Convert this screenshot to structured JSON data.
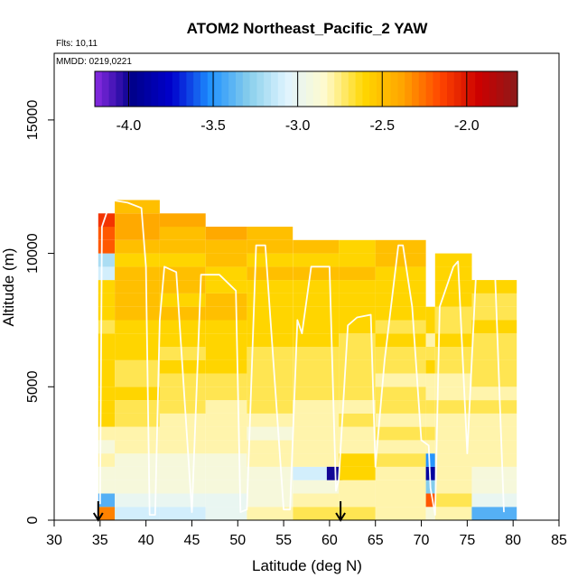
{
  "chart_data": {
    "type": "heatmap",
    "title": "ATOM2 Northeast_Pacific_2 YAW",
    "flights_label": "Flts: 10,11",
    "dates_label": "MMDD: 0219,0221",
    "xlabel": "Latitude (deg N)",
    "ylabel": "Altitude (m)",
    "xlim": [
      30,
      85
    ],
    "ylim": [
      0,
      17500
    ],
    "x_ticks": [
      30,
      35,
      40,
      45,
      50,
      55,
      60,
      65,
      70,
      75,
      80,
      85
    ],
    "y_ticks": [
      0,
      5000,
      10000,
      15000
    ],
    "colorbar": {
      "range": [
        -4.2,
        -1.7
      ],
      "ticks": [
        -4.0,
        -3.5,
        -3.0,
        -2.5,
        -2.0
      ],
      "tick_labels": [
        "-4.0",
        "-3.5",
        "-3.0",
        "-2.5",
        "-2.0"
      ],
      "colors": [
        "#8a2be2",
        "#00008b",
        "#0000cd",
        "#1e90ff",
        "#87ceeb",
        "#e0f4ff",
        "#fffacd",
        "#ffd700",
        "#ffa500",
        "#ff4500",
        "#cc0000",
        "#8b1a1a"
      ]
    },
    "altitude_bin_m": 500,
    "profiles": [
      {
        "lat_start": 34.8,
        "lat_end": 36.6,
        "alt_max": 11500,
        "values": [
          -2.3,
          -3.4,
          -2.9,
          -2.9,
          -2.8,
          -2.9,
          -2.8,
          -2.6,
          -2.6,
          -2.6,
          -2.6,
          -2.6,
          -2.6,
          -2.6,
          -2.7,
          -2.6,
          -2.6,
          -2.6,
          -3.1,
          -3.2,
          -2.2,
          -2.2,
          -2.1
        ]
      },
      {
        "lat_start": 36.6,
        "lat_end": 41.5,
        "alt_max": 12000,
        "values": [
          -3.1,
          -3.0,
          -2.9,
          -2.9,
          -2.9,
          -2.8,
          -2.8,
          -2.7,
          -2.7,
          -2.6,
          -2.7,
          -2.7,
          -2.6,
          -2.6,
          -2.6,
          -2.5,
          -2.5,
          -2.5,
          -2.5,
          -2.6,
          -2.5,
          -2.4,
          -2.4,
          -2.5
        ]
      },
      {
        "lat_start": 41.5,
        "lat_end": 46.5,
        "alt_max": 11500,
        "values": [
          -3.1,
          -3.0,
          -2.9,
          -2.9,
          -2.9,
          -2.8,
          -2.8,
          -2.8,
          -2.7,
          -2.7,
          -2.7,
          -2.6,
          -2.7,
          -2.6,
          -2.6,
          -2.5,
          -2.6,
          -2.5,
          -2.5,
          -2.6,
          -2.5,
          -2.5,
          -2.4
        ]
      },
      {
        "lat_start": 46.5,
        "lat_end": 51.0,
        "alt_max": 11000,
        "values": [
          -3.0,
          -3.0,
          -2.9,
          -2.9,
          -2.9,
          -2.8,
          -2.8,
          -2.8,
          -2.8,
          -2.7,
          -2.7,
          -2.6,
          -2.6,
          -2.6,
          -2.6,
          -2.5,
          -2.5,
          -2.6,
          -2.6,
          -2.5,
          -2.5,
          -2.4
        ]
      },
      {
        "lat_start": 51.0,
        "lat_end": 56.0,
        "alt_max": 11000,
        "values": [
          -2.8,
          -2.9,
          -2.9,
          -2.9,
          -2.8,
          -2.8,
          -2.9,
          -2.8,
          -2.7,
          -2.7,
          -2.7,
          -2.7,
          -2.7,
          -2.6,
          -2.6,
          -2.6,
          -2.6,
          -2.6,
          -2.5,
          -2.6,
          -2.5,
          -2.5
        ]
      },
      {
        "lat_start": 56.0,
        "lat_end": 61.0,
        "alt_max": 10500,
        "values": [
          -2.7,
          -2.8,
          -2.9,
          -3.1,
          -2.8,
          -2.8,
          -2.8,
          -2.8,
          -2.8,
          -2.7,
          -2.7,
          -2.7,
          -2.7,
          -2.6,
          -2.6,
          -2.6,
          -2.6,
          -2.6,
          -2.5,
          -2.6,
          -2.5
        ]
      },
      {
        "lat_start": 59.7,
        "lat_end": 61.4,
        "alt_min": 1500,
        "alt_max": 2000,
        "values": [
          -4.0
        ]
      },
      {
        "lat_start": 61.0,
        "lat_end": 65.0,
        "alt_max": 10500,
        "values": [
          -2.7,
          -2.8,
          -2.8,
          -2.6,
          -2.6,
          -2.8,
          -2.8,
          -2.7,
          -2.8,
          -2.7,
          -2.7,
          -2.7,
          -2.7,
          -2.7,
          -2.6,
          -2.6,
          -2.6,
          -2.6,
          -2.5,
          -2.6,
          -2.6
        ]
      },
      {
        "lat_start": 65.0,
        "lat_end": 70.5,
        "alt_max": 10500,
        "values": [
          -2.8,
          -2.8,
          -2.8,
          -2.8,
          -2.7,
          -2.8,
          -2.7,
          -2.8,
          -2.7,
          -2.7,
          -2.8,
          -2.7,
          -2.7,
          -2.6,
          -2.7,
          -2.6,
          -2.6,
          -2.6,
          -2.6,
          -2.5,
          -2.5
        ]
      },
      {
        "lat_start": 70.5,
        "lat_end": 71.5,
        "alt_max": 8000,
        "values": [
          -2.9,
          -2.2,
          -3.3,
          -3.9,
          -3.5,
          -2.8,
          -2.7,
          -2.8,
          -2.7,
          -2.8,
          -2.8,
          -2.6,
          -2.7,
          -2.8,
          -2.6,
          -2.6
        ]
      },
      {
        "lat_start": 71.5,
        "lat_end": 75.5,
        "alt_max": 10000,
        "values": [
          -2.8,
          -2.7,
          -2.8,
          -2.8,
          -2.8,
          -2.8,
          -2.8,
          -2.8,
          -2.7,
          -2.8,
          -2.8,
          -2.7,
          -2.7,
          -2.6,
          -2.7,
          -2.7,
          -2.6,
          -2.6,
          -2.6,
          -2.6
        ]
      },
      {
        "lat_start": 75.5,
        "lat_end": 80.4,
        "alt_max": 9000,
        "values": [
          -3.4,
          -3.0,
          -2.9,
          -2.9,
          -2.8,
          -2.8,
          -2.8,
          -2.8,
          -2.7,
          -2.8,
          -2.7,
          -2.7,
          -2.7,
          -2.7,
          -2.6,
          -2.7,
          -2.7,
          -2.6
        ]
      }
    ],
    "flight_track": {
      "lat": [
        35.0,
        35.2,
        35.5,
        36.2,
        38.0,
        39.5,
        40.0,
        40.4,
        41.0,
        41.5,
        42.0,
        43.3,
        45.0,
        46.0,
        48.0,
        49.8,
        50.3,
        51.0,
        52.0,
        53.0,
        55.0,
        55.7,
        56.5,
        57.0,
        58.0,
        59.0,
        60.0,
        60.7,
        61.0,
        62.0,
        63.0,
        64.5,
        65.0,
        66.0,
        67.5,
        68.0,
        69.0,
        70.0,
        70.8,
        71.0,
        71.5,
        72.0,
        73.5,
        74.0,
        75.0,
        76.0,
        77.5,
        78.0,
        79.0
      ],
      "alt": [
        600,
        11000,
        11300,
        12000,
        11900,
        11700,
        9500,
        200,
        200,
        7500,
        9500,
        9300,
        300,
        9200,
        9200,
        8600,
        300,
        400,
        10300,
        10300,
        400,
        400,
        7500,
        7000,
        9500,
        9500,
        9500,
        1100,
        1500,
        7300,
        7600,
        7700,
        2000,
        6000,
        10300,
        10300,
        8000,
        3000,
        2800,
        1200,
        200,
        8000,
        9500,
        9700,
        2500,
        9500,
        9600,
        9500,
        300
      ]
    },
    "arrows_lat": [
      34.8,
      61.2
    ]
  }
}
